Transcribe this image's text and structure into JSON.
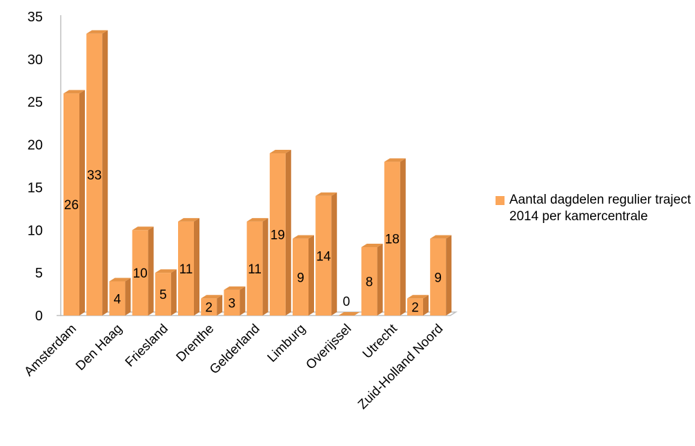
{
  "chart_data": {
    "type": "bar",
    "style": "3d-column",
    "categories": [
      "Amsterdam",
      "",
      "Den Haag",
      "",
      "Friesland",
      "",
      "Drenthe",
      "",
      "Gelderland",
      "",
      "Limburg",
      "",
      "Overijssel",
      "",
      "Utrecht",
      "",
      "Zuid-Holland Noord"
    ],
    "series": [
      {
        "name": "Aantal dagdelen regulier traject 2014 per kamercentrale",
        "values": [
          26,
          33,
          4,
          10,
          5,
          11,
          2,
          3,
          11,
          19,
          9,
          14,
          0,
          8,
          18,
          2,
          9
        ]
      }
    ],
    "y_ticks": [
      "0",
      "5",
      "10",
      "15",
      "20",
      "25",
      "30",
      "35"
    ],
    "ylim": [
      0,
      35
    ],
    "grid": false,
    "legend_position": "right",
    "colors": {
      "bar_front": "#FBA65A",
      "bar_side": "#C87A37",
      "bar_top": "#E69447",
      "axis": "#BFBFBF"
    }
  },
  "legend": {
    "label": "Aantal dagdelen regulier traject 2014 per kamercentrale"
  }
}
